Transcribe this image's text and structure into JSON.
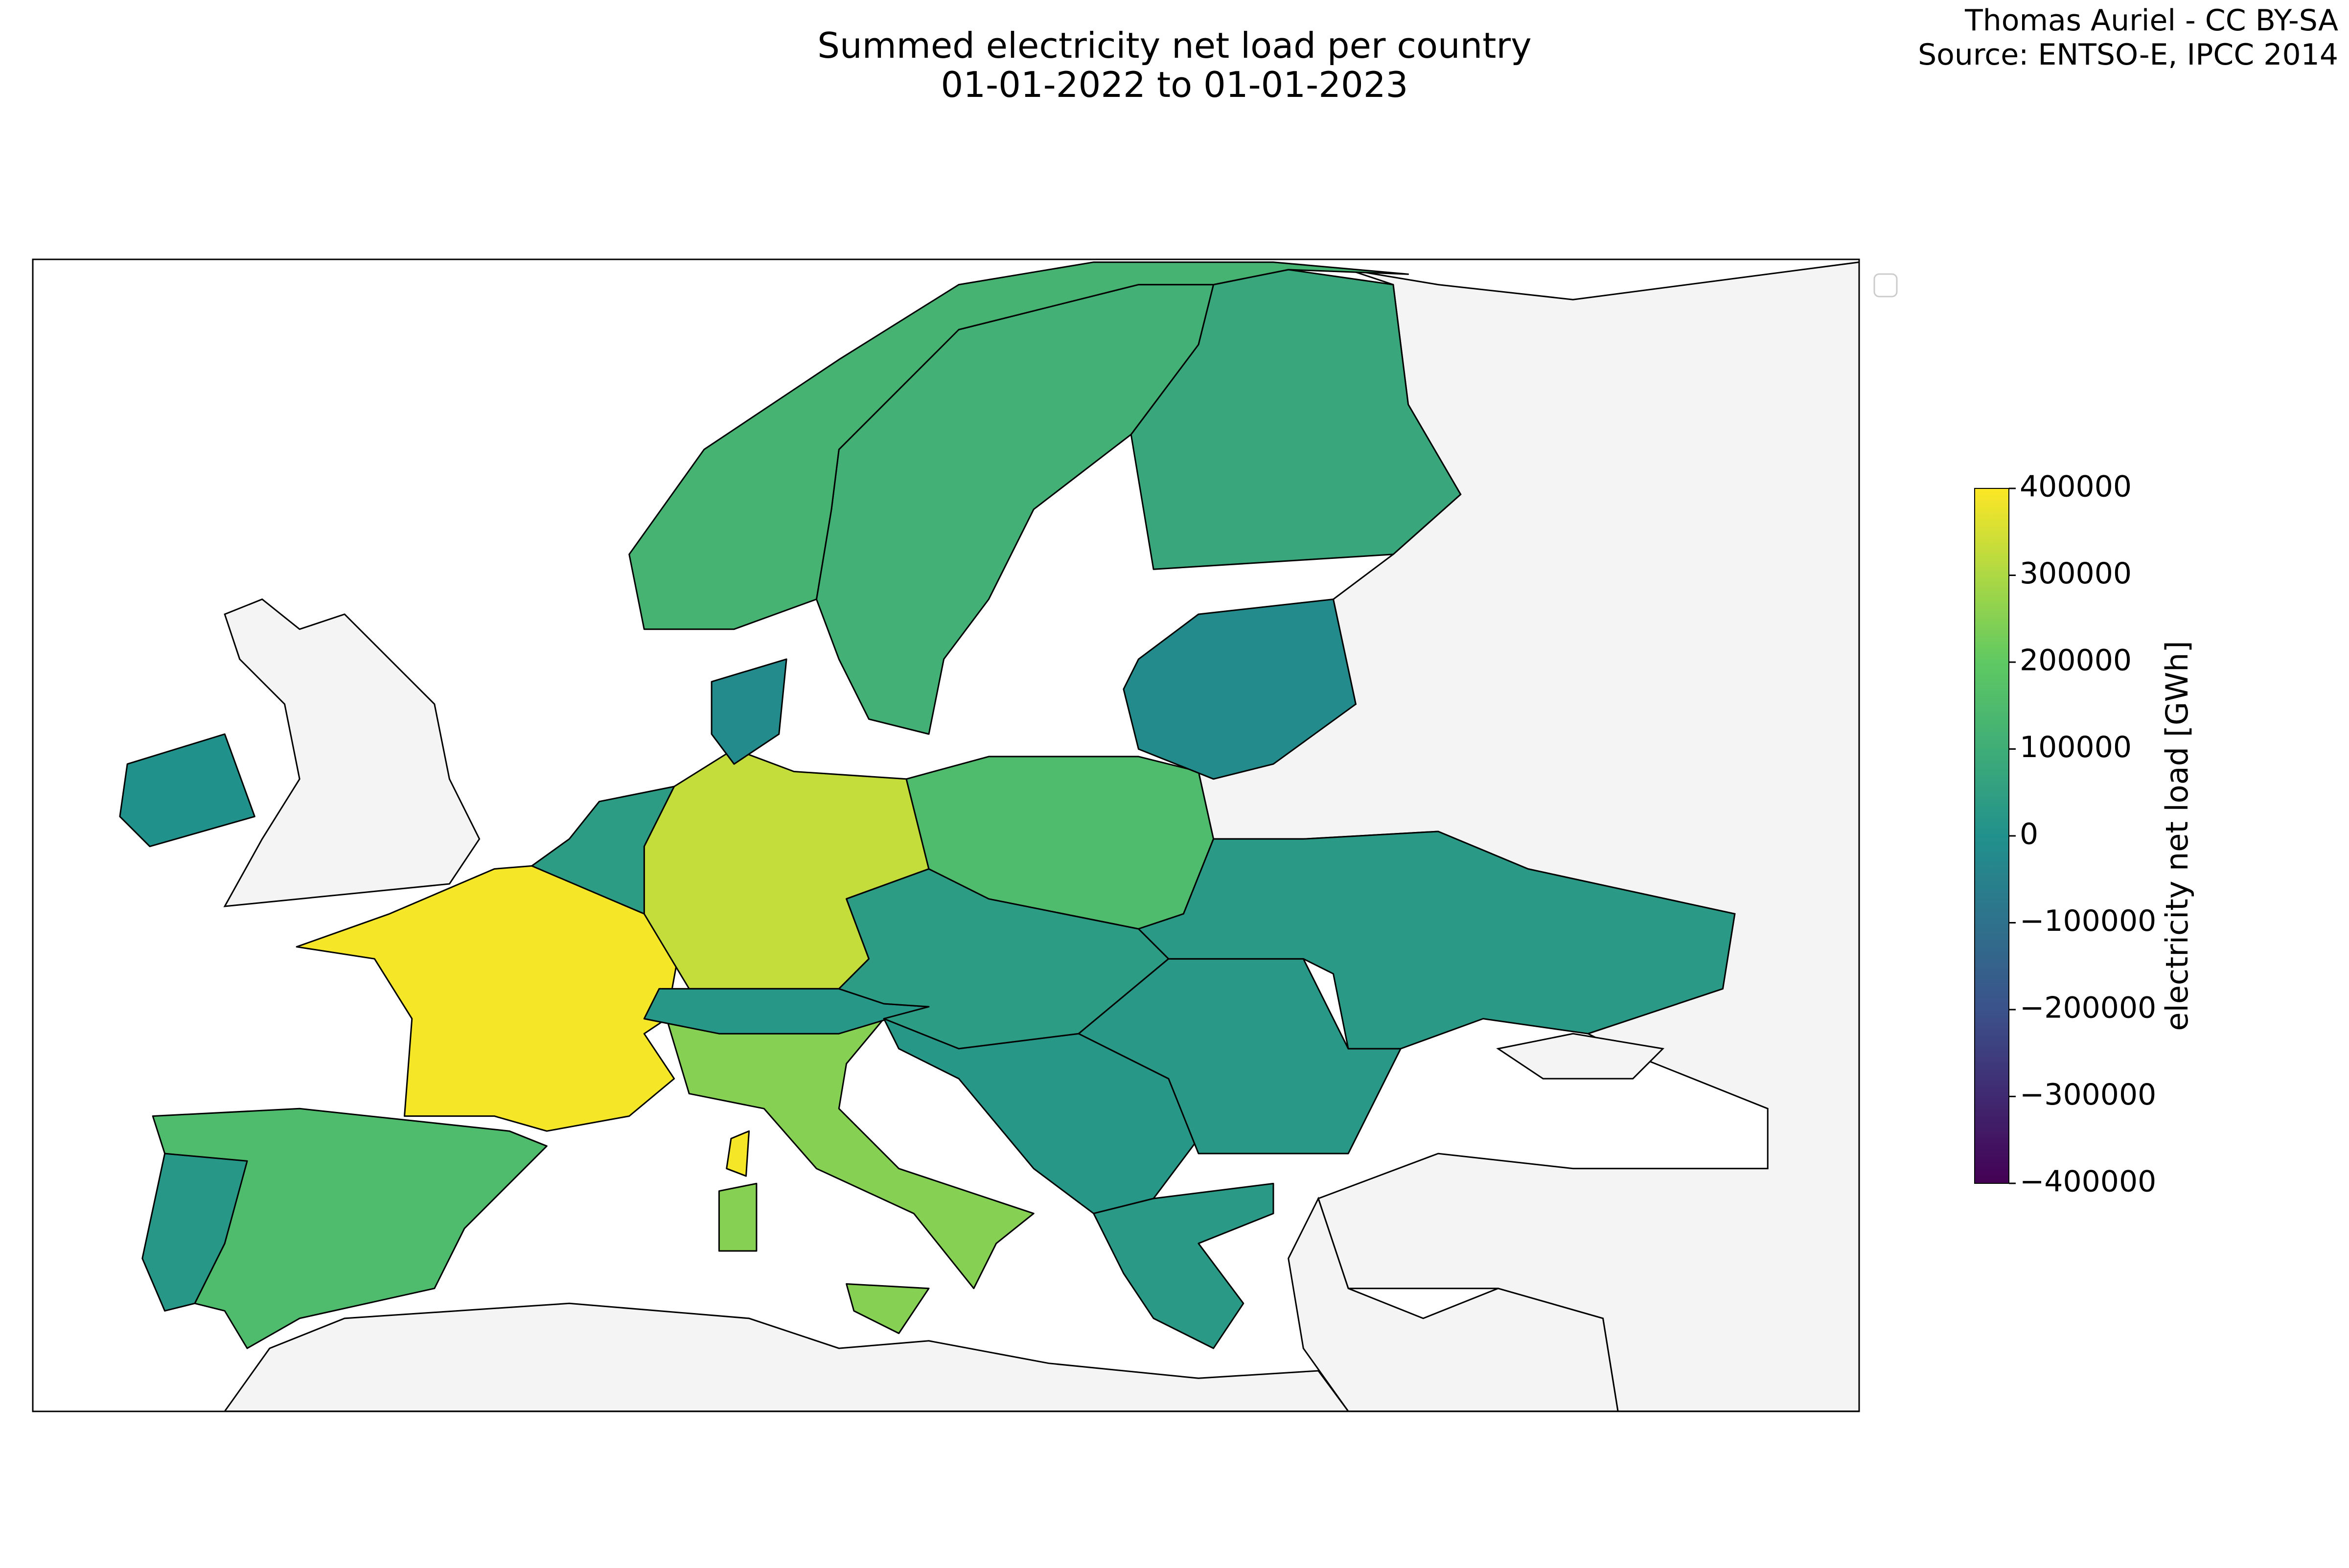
{
  "chart_data": {
    "type": "choropleth",
    "title": "Summed electricity net load per country",
    "subtitle": "01-01-2022 to 01-01-2023",
    "credits": [
      "Thomas Auriel - CC BY-SA",
      "Source: ENTSO-E, IPCC 2014"
    ],
    "colorbar_label": "electricity net load [GWh]",
    "clim": [
      -400000,
      400000
    ],
    "cticks": [
      {
        "value": -400000,
        "label": "−400000"
      },
      {
        "value": -300000,
        "label": "−300000"
      },
      {
        "value": -200000,
        "label": "−200000"
      },
      {
        "value": -100000,
        "label": "−100000"
      },
      0,
      100000,
      200000,
      300000,
      400000
    ],
    "colormap": [
      "#440154",
      "#3b528b",
      "#21918c",
      "#5ec962",
      "#fde725"
    ],
    "values": [
      390000,
      390000,
      150000,
      20000,
      330000,
      40000,
      250000,
      250000,
      250000,
      20000,
      40000,
      150000,
      20000,
      25000,
      30000,
      30000,
      -20000,
      80000,
      110000,
      120000,
      -20000,
      0
    ]
  }
}
